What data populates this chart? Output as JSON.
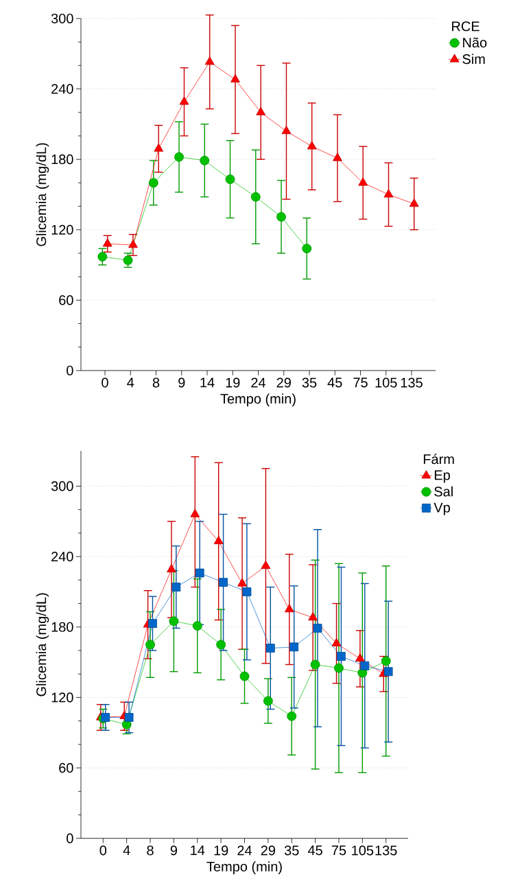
{
  "chart_data": [
    {
      "type": "line",
      "categories": [
        "0",
        "4",
        "8",
        "9",
        "14",
        "19",
        "24",
        "29",
        "35",
        "45",
        "75",
        "105",
        "135"
      ],
      "xlabel": "Tempo (min)",
      "ylabel": "Glicemia (mg/dL)",
      "ylim": [
        0,
        300
      ],
      "yticks": [
        0,
        60,
        120,
        180,
        240,
        300
      ],
      "grid": "y",
      "legend": "top right",
      "legend_title": "RCE",
      "line_style": "solid",
      "series": [
        {
          "name": "Não",
          "color": "#00c000",
          "marker": "circle",
          "values": [
            97,
            94,
            160,
            182,
            179,
            163,
            148,
            131,
            104,
            null,
            null,
            null,
            null
          ],
          "errors": [
            7,
            6,
            19,
            30,
            31,
            33,
            40,
            31,
            26,
            null,
            null,
            null,
            null
          ]
        },
        {
          "name": "Sim",
          "color": "#ff0000",
          "marker": "triangle",
          "values": [
            108,
            107,
            189,
            229,
            263,
            248,
            220,
            204,
            191,
            181,
            160,
            150,
            142
          ],
          "errors": [
            7,
            9,
            20,
            29,
            40,
            46,
            40,
            58,
            37,
            37,
            31,
            27,
            22
          ]
        }
      ]
    },
    {
      "type": "line",
      "categories": [
        "0",
        "4",
        "8",
        "9",
        "14",
        "19",
        "24",
        "29",
        "35",
        "45",
        "75",
        "105",
        "135"
      ],
      "xlabel": "Tempo (min)",
      "ylabel": "Glicemia (mg/dL)",
      "ylim": [
        0,
        330
      ],
      "yticks": [
        0,
        60,
        120,
        180,
        240,
        300
      ],
      "grid": "y",
      "legend": "top right",
      "legend_title": "Fárm",
      "line_style": "solid",
      "series": [
        {
          "name": "Ep",
          "color": "#ff0000",
          "marker": "triangle",
          "values": [
            103,
            104,
            182,
            229,
            276,
            253,
            217,
            232,
            195,
            188,
            166,
            153,
            140
          ],
          "errors": [
            11,
            12,
            29,
            41,
            [
              214,
              325
            ],
            67,
            56,
            83,
            47,
            45,
            34,
            24,
            15
          ]
        },
        {
          "name": "Sal",
          "color": "#00c000",
          "marker": "circle",
          "values": [
            102,
            97,
            165,
            185,
            181,
            165,
            138,
            117,
            104,
            148,
            145,
            141,
            151
          ],
          "errors": [
            8,
            8,
            28,
            43,
            40,
            30,
            23,
            19,
            33,
            89,
            89,
            85,
            81
          ]
        },
        {
          "name": "Vp",
          "color": "#0066c8",
          "marker": "square",
          "values": [
            103,
            103,
            183,
            214,
            226,
            218,
            210,
            162,
            163,
            179,
            155,
            147,
            142
          ],
          "errors": [
            11,
            13,
            23,
            35,
            44,
            58,
            58,
            52,
            52,
            84,
            76,
            70,
            60
          ]
        }
      ]
    }
  ]
}
